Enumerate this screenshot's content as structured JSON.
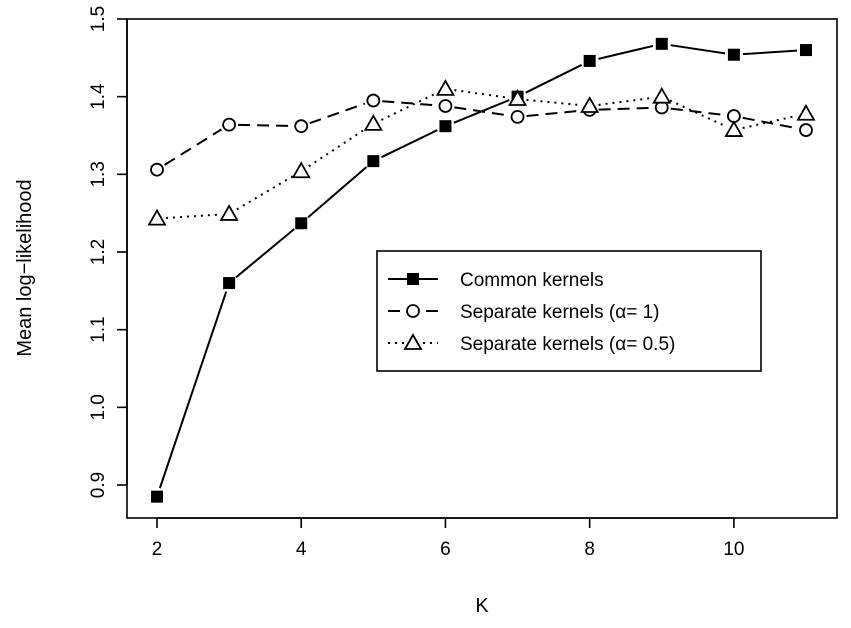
{
  "chart_data": {
    "type": "line",
    "xlabel": "K",
    "ylabel": "Mean log−likelihood",
    "xlim": [
      2,
      11
    ],
    "ylim": [
      0.9,
      1.5
    ],
    "xticks": [
      "2",
      "4",
      "6",
      "8",
      "10"
    ],
    "yticks": [
      "0.9",
      "1.0",
      "1.1",
      "1.2",
      "1.3",
      "1.4",
      "1.5"
    ],
    "grid": false,
    "legend_position": "center-right",
    "x": [
      2,
      3,
      4,
      5,
      6,
      7,
      8,
      9,
      10,
      11
    ],
    "series": [
      {
        "name": "Common kernels",
        "line": "solid",
        "marker": "filled-square",
        "values": [
          0.885,
          1.16,
          1.237,
          1.317,
          1.362,
          1.4,
          1.446,
          1.468,
          1.454,
          1.46
        ]
      },
      {
        "name": "Separate kernels (α= 1)",
        "line": "dashed",
        "marker": "open-circle",
        "values": [
          1.306,
          1.364,
          1.362,
          1.395,
          1.388,
          1.374,
          1.383,
          1.386,
          1.375,
          1.357
        ]
      },
      {
        "name": "Separate kernels (α= 0.5)",
        "line": "dotted",
        "marker": "open-triangle",
        "values": [
          1.243,
          1.249,
          1.304,
          1.365,
          1.41,
          1.397,
          1.388,
          1.4,
          1.357,
          1.378
        ]
      }
    ],
    "colors": {
      "line": "#000000",
      "background": "#ffffff"
    }
  }
}
